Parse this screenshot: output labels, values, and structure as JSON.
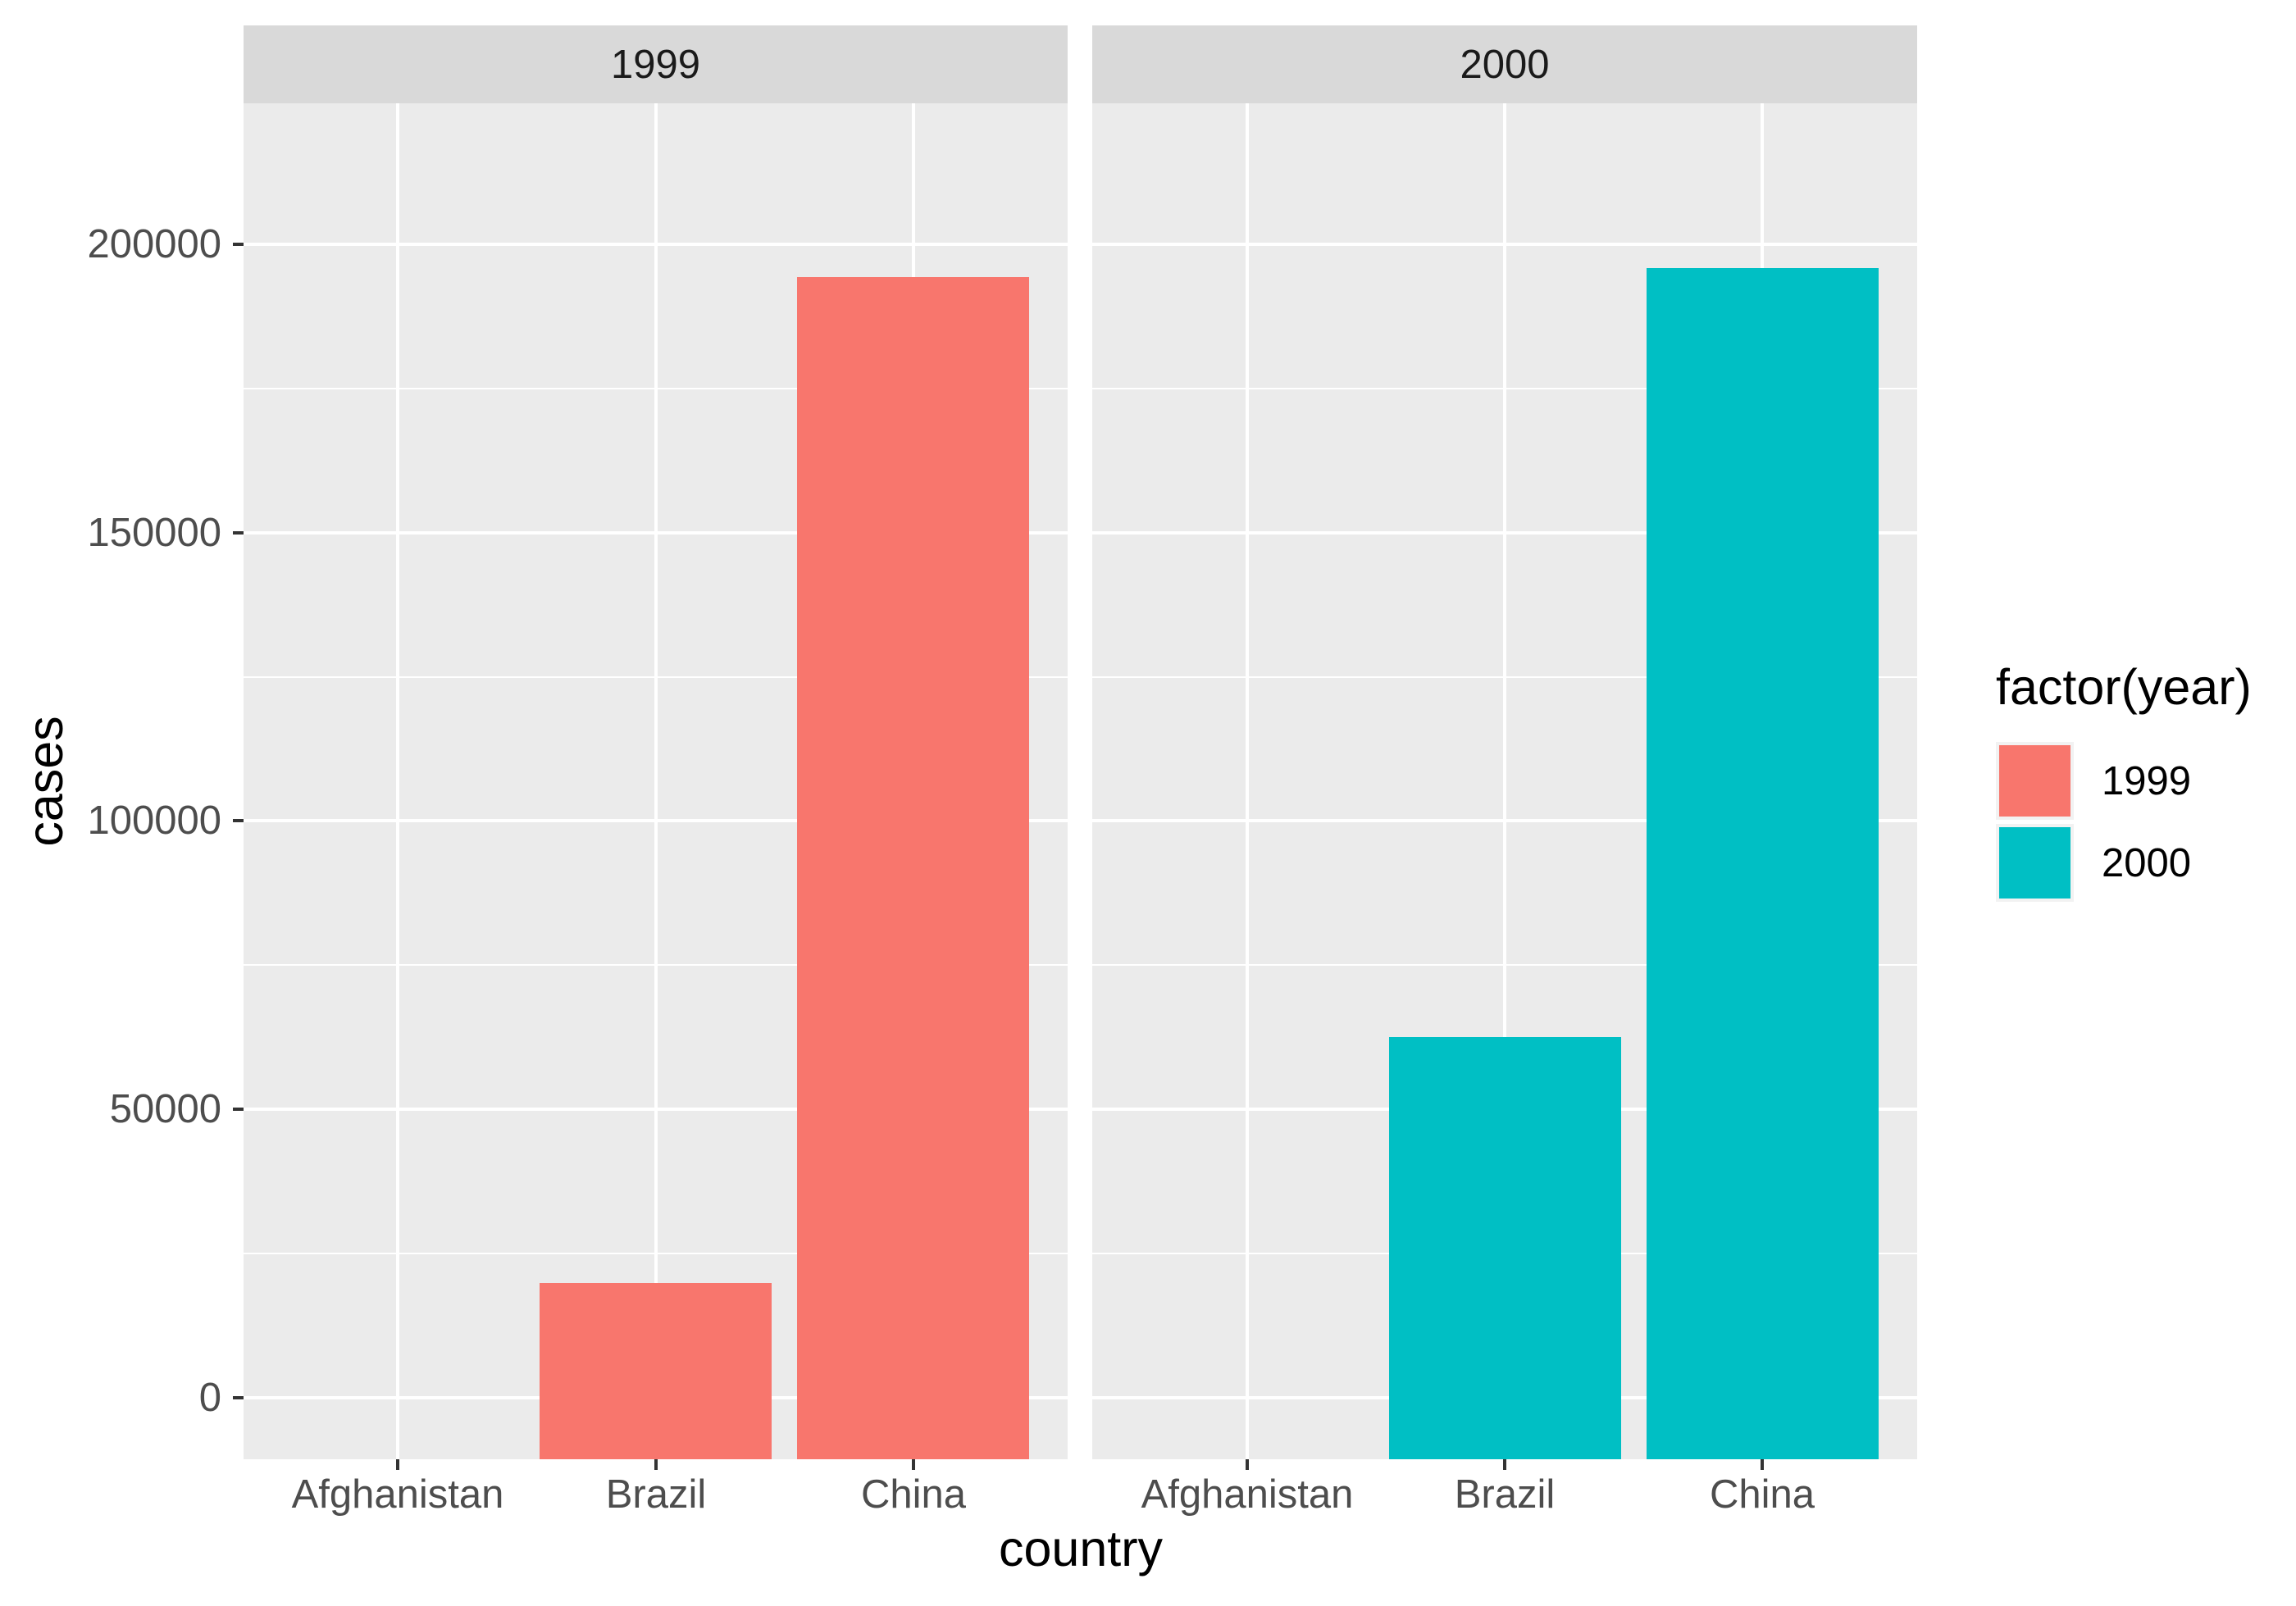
{
  "chart_data": {
    "type": "bar",
    "title": "",
    "xlabel": "country",
    "ylabel": "cases",
    "categories": [
      "Afghanistan",
      "Brazil",
      "China"
    ],
    "facets": [
      {
        "label": "1999",
        "values": [
          745,
          37737,
          212258
        ]
      },
      {
        "label": "2000",
        "values": [
          2666,
          80488,
          213766
        ]
      }
    ],
    "series_colors": {
      "1999": "#F8766D",
      "2000": "#00BFC4"
    },
    "y_ticks": [
      {
        "value": 0,
        "label": "0"
      },
      {
        "value": 50000,
        "label": "50000"
      },
      {
        "value": 100000,
        "label": "100000"
      },
      {
        "value": 150000,
        "label": "150000"
      },
      {
        "value": 200000,
        "label": "200000"
      }
    ],
    "y_minor_ticks": [
      25000,
      75000,
      125000,
      175000
    ],
    "ylim": [
      -10688,
      224454
    ],
    "grid": true,
    "legend": {
      "title": "factor(year)",
      "position": "right",
      "entries": [
        {
          "label": "1999",
          "color": "#F8766D"
        },
        {
          "label": "2000",
          "color": "#00BFC4"
        }
      ]
    }
  },
  "style": {
    "background": "#FFFFFF",
    "panel_bg": "#EBEBEB",
    "strip_bg": "#D9D9D9",
    "grid_color": "#FFFFFF",
    "tick_color": "#333333",
    "axis_text_color": "#4D4D4D",
    "strip_text_color": "#1A1A1A",
    "title_color": "#000000",
    "legend_key_bg": "#F2F2F2"
  }
}
